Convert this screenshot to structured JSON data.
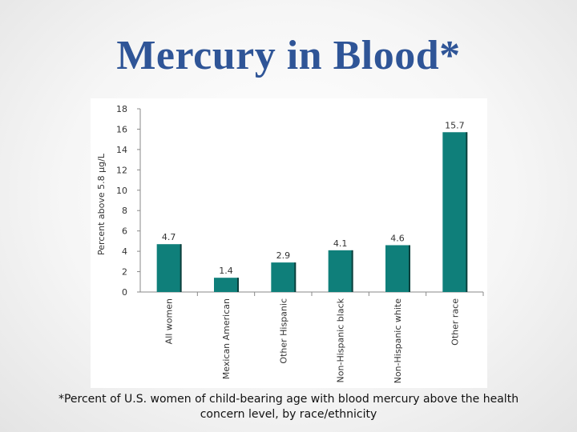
{
  "slide": {
    "title": "Mercury in Blood*",
    "caption": "*Percent of U.S. women of child-bearing age with blood mercury above the health concern level, by race/ethnicity"
  },
  "colors": {
    "bar": "#0f7f7a",
    "bar_edge": "#0a3f3c",
    "title": "#2f5597"
  },
  "chart_data": {
    "type": "bar",
    "title": "",
    "xlabel": "",
    "ylabel": "Percent above 5.8 μg/L",
    "ylim": [
      0,
      18
    ],
    "yticks": [
      0,
      2,
      4,
      6,
      8,
      10,
      12,
      14,
      16,
      18
    ],
    "categories": [
      "All women",
      "Mexican American",
      "Other Hispanic",
      "Non-Hispanic black",
      "Non-Hispanic white",
      "Other race"
    ],
    "values": [
      4.7,
      1.4,
      2.9,
      4.1,
      4.6,
      15.7
    ],
    "value_labels": [
      "4.7",
      "1.4",
      "2.9",
      "4.1",
      "4.6",
      "15.7"
    ],
    "grid": false,
    "legend": "none"
  }
}
